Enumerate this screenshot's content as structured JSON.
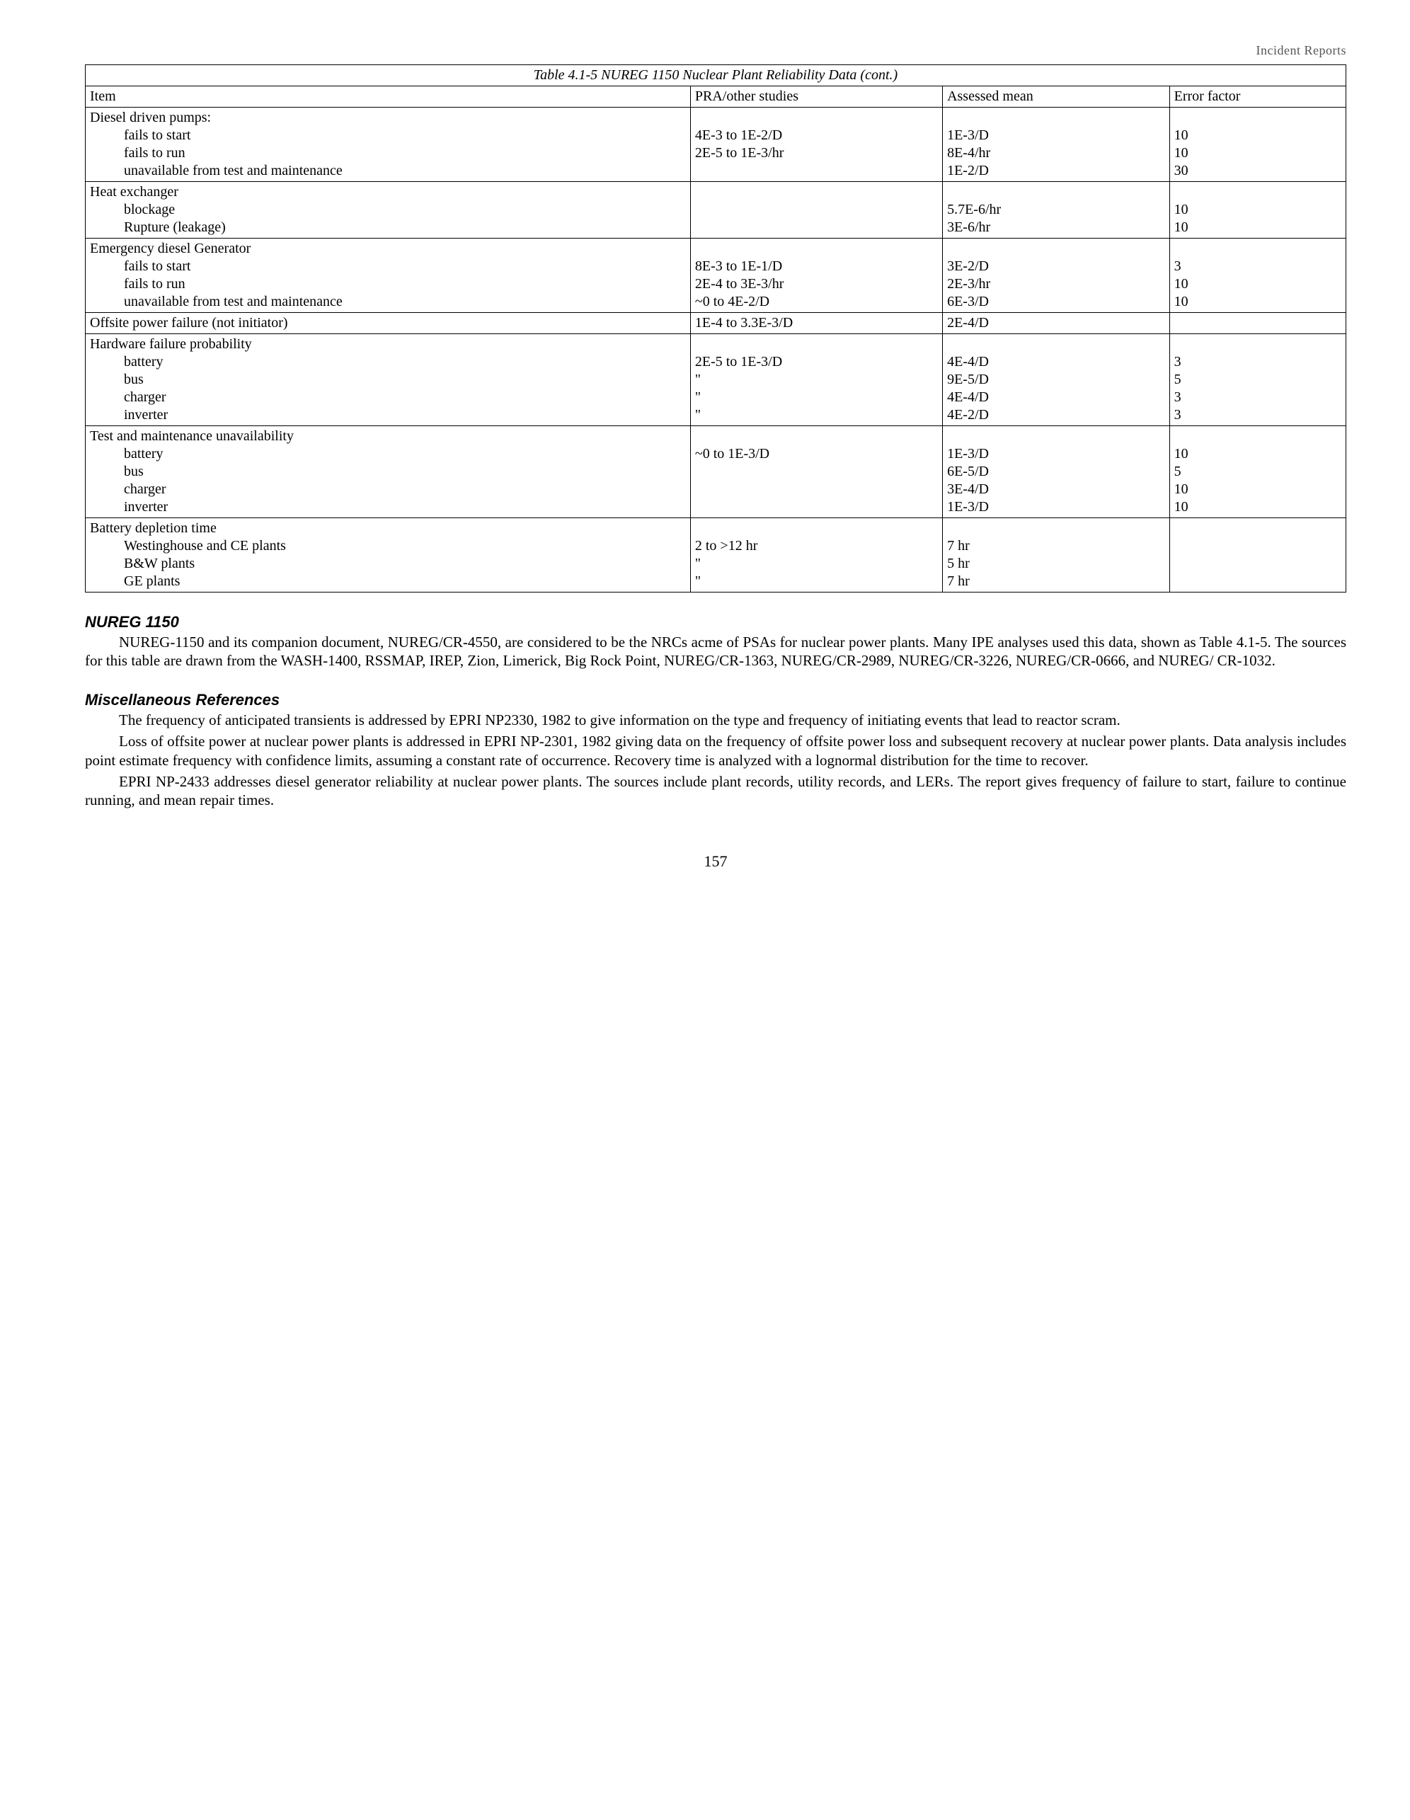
{
  "header_right": "Incident Reports",
  "table": {
    "caption": "Table 4.1-5 NUREG 1150 Nuclear Plant Reliability Data (cont.)",
    "columns": [
      "Item",
      "PRA/other studies",
      "Assessed mean",
      "Error factor"
    ],
    "groups": [
      {
        "heading": "Diesel driven pumps:",
        "rows": [
          {
            "item": "fails to start",
            "pra": "4E-3 to 1E-2/D",
            "mean": "1E-3/D",
            "err": "10"
          },
          {
            "item": "fails to run",
            "pra": "2E-5 to 1E-3/hr",
            "mean": "8E-4/hr",
            "err": "10"
          },
          {
            "item": "unavailable from test and maintenance",
            "pra": "",
            "mean": "1E-2/D",
            "err": "30"
          }
        ]
      },
      {
        "heading": "Heat exchanger",
        "rows": [
          {
            "item": "blockage",
            "pra": "",
            "mean": "5.7E-6/hr",
            "err": "10"
          },
          {
            "item": "Rupture (leakage)",
            "pra": "",
            "mean": "3E-6/hr",
            "err": "10"
          }
        ]
      },
      {
        "heading": "Emergency diesel Generator",
        "rows": [
          {
            "item": "fails to start",
            "pra": "8E-3 to 1E-1/D",
            "mean": "3E-2/D",
            "err": "3"
          },
          {
            "item": "fails to run",
            "pra": "2E-4 to 3E-3/hr",
            "mean": "2E-3/hr",
            "err": "10"
          },
          {
            "item": "unavailable from test and maintenance",
            "pra": "~0 to 4E-2/D",
            "mean": "6E-3/D",
            "err": "10"
          }
        ]
      },
      {
        "heading": "Offsite power failure (not initiator)",
        "single": true,
        "rows": [
          {
            "item": "",
            "pra": "1E-4 to 3.3E-3/D",
            "mean": "2E-4/D",
            "err": ""
          }
        ]
      },
      {
        "heading": "Hardware failure probability",
        "rows": [
          {
            "item": "battery",
            "pra": "2E-5 to 1E-3/D",
            "mean": "4E-4/D",
            "err": "3"
          },
          {
            "item": "bus",
            "pra": "\"",
            "mean": "9E-5/D",
            "err": "5"
          },
          {
            "item": "charger",
            "pra": "\"",
            "mean": "4E-4/D",
            "err": "3"
          },
          {
            "item": "inverter",
            "pra": "\"",
            "mean": "4E-2/D",
            "err": "3"
          }
        ]
      },
      {
        "heading": "Test and maintenance unavailability",
        "rows": [
          {
            "item": "battery",
            "pra": "~0 to 1E-3/D",
            "mean": "1E-3/D",
            "err": "10"
          },
          {
            "item": "bus",
            "pra": "",
            "mean": "6E-5/D",
            "err": "5"
          },
          {
            "item": "charger",
            "pra": "",
            "mean": "3E-4/D",
            "err": "10"
          },
          {
            "item": "inverter",
            "pra": "",
            "mean": "1E-3/D",
            "err": "10"
          }
        ]
      },
      {
        "heading": "Battery depletion time",
        "rows": [
          {
            "item": "Westinghouse and CE plants",
            "pra": "2 to >12 hr",
            "mean": "7 hr",
            "err": ""
          },
          {
            "item": "B&W plants",
            "pra": "\"",
            "mean": "5 hr",
            "err": ""
          },
          {
            "item": "GE plants",
            "pra": "\"",
            "mean": "7 hr",
            "err": ""
          }
        ]
      }
    ]
  },
  "section1": {
    "title": "NUREG 1150",
    "para": "NUREG-1150 and its companion document, NUREG/CR-4550, are considered to be the NRCs acme of PSAs for nuclear power plants.  Many IPE analyses used this data, shown as Table 4.1-5.  The sources for this table are drawn from the WASH-1400, RSSMAP, IREP, Zion, Limerick, Big Rock Point, NUREG/CR-1363, NUREG/CR-2989, NUREG/CR-3226, NUREG/CR-0666, and NUREG/ CR-1032."
  },
  "section2": {
    "title": "Miscellaneous References",
    "paras": [
      "The frequency of anticipated transients is addressed by EPRI NP2330, 1982 to give information on the type and frequency of initiating events that lead to reactor scram.",
      "Loss of offsite power at nuclear power plants is addressed in EPRI NP-2301, 1982 giving data on the frequency of offsite power loss and subsequent recovery at nuclear power plants.  Data analysis includes point estimate frequency with confidence limits, assuming a constant rate of occurrence.  Recovery time is analyzed with a lognormal distribution for the time to recover.",
      "EPRI NP-2433 addresses diesel generator reliability at nuclear power plants.  The sources include plant records, utility records, and LERs.  The report gives frequency of failure to start, failure to continue running, and mean repair times."
    ]
  },
  "pagenum": "157"
}
